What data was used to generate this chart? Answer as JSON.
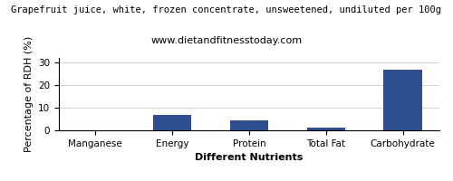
{
  "title": "Grapefruit juice, white, frozen concentrate, unsweetened, undiluted per 100g",
  "subtitle": "www.dietandfitnesstoday.com",
  "categories": [
    "Manganese",
    "Energy",
    "Protein",
    "Total Fat",
    "Carbohydrate"
  ],
  "values": [
    0.0,
    7.0,
    4.5,
    1.1,
    27.0
  ],
  "bar_color": "#2e4f8f",
  "xlabel": "Different Nutrients",
  "ylabel": "Percentage of RDH (%)",
  "ylim": [
    0,
    32
  ],
  "yticks": [
    0,
    10,
    20,
    30
  ],
  "background_color": "#ffffff",
  "title_fontsize": 7.5,
  "subtitle_fontsize": 8,
  "axis_label_fontsize": 8,
  "tick_fontsize": 7.5
}
